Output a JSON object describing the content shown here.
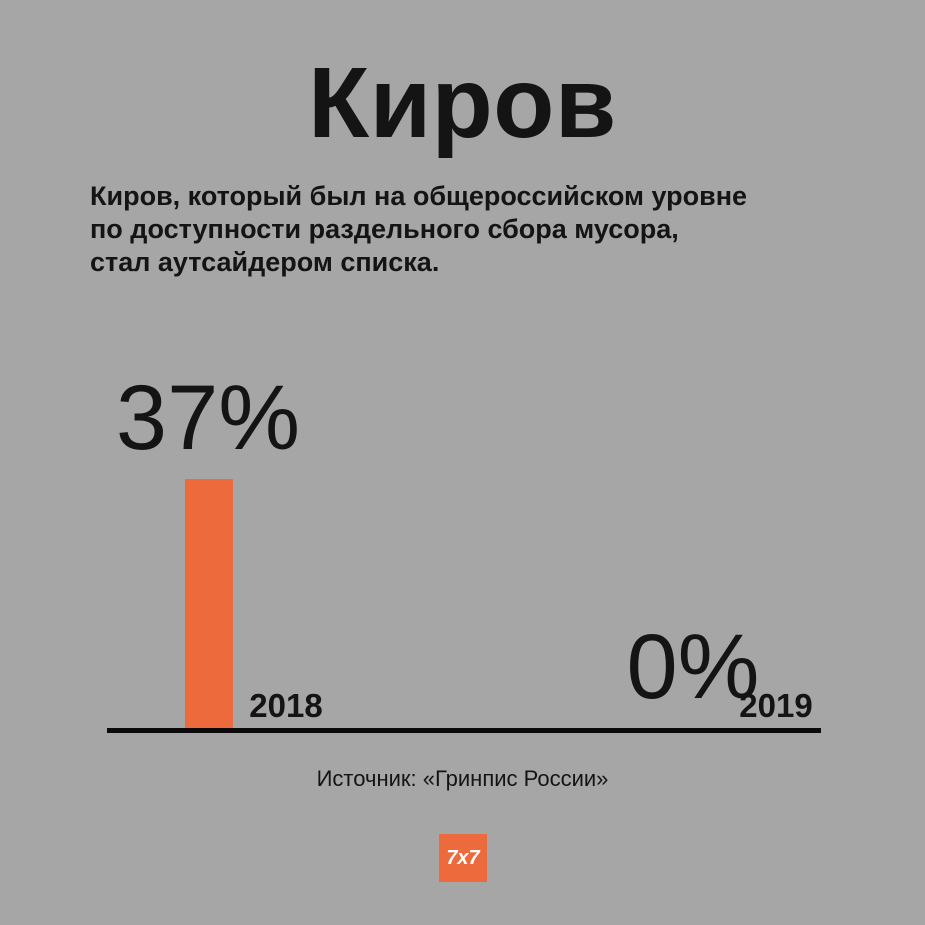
{
  "title": "Киров",
  "subtitle_lines": [
    "Киров, который был на общероссийском уровне",
    "по доступности раздельного сбора мусора,",
    "стал аутсайдером списка."
  ],
  "source": "Источник: «Гринпис России»",
  "logo_text": "7x7",
  "colors": {
    "background": "#a6a6a6",
    "bar": "#ec6a3c",
    "text": "#141414",
    "axis": "#0a0a0a"
  },
  "chart_data": {
    "type": "bar",
    "categories": [
      "2018",
      "2019"
    ],
    "values": [
      37,
      0
    ],
    "value_labels": [
      "37%",
      "0%"
    ],
    "ylim": [
      0,
      37
    ],
    "grid": false
  }
}
